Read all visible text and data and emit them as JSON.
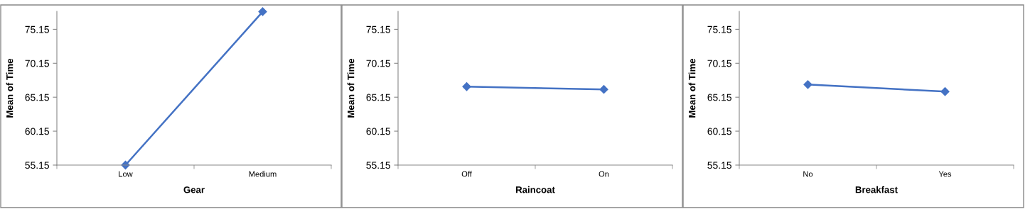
{
  "chart_data": [
    {
      "type": "line",
      "categories": [
        "Low",
        "Medium"
      ],
      "xlabel": "Gear",
      "ylabel": "Mean of Time",
      "series": [
        {
          "color": "#4472c4",
          "values": [
            55.15,
            77.75
          ]
        }
      ],
      "ylim": [
        55.15,
        77.8
      ],
      "yticks": [
        55.15,
        60.15,
        65.15,
        70.15,
        75.15
      ],
      "marker": "diamond",
      "line_style": "solid",
      "grid": false,
      "legend": false
    },
    {
      "type": "line",
      "categories": [
        "Off",
        "On"
      ],
      "xlabel": "Raincoat",
      "ylabel": "Mean of Time",
      "series": [
        {
          "color": "#4472c4",
          "values": [
            66.71,
            66.3
          ]
        }
      ],
      "ylim": [
        55.15,
        77.8
      ],
      "yticks": [
        55.15,
        60.15,
        65.15,
        70.15,
        75.15
      ],
      "marker": "diamond",
      "line_style": "solid",
      "grid": false,
      "legend": false
    },
    {
      "type": "line",
      "categories": [
        "No",
        "Yes"
      ],
      "xlabel": "Breakfast",
      "ylabel": "Mean of Time",
      "series": [
        {
          "color": "#4472c4",
          "values": [
            67.02,
            65.98
          ]
        }
      ],
      "ylim": [
        55.15,
        77.8
      ],
      "yticks": [
        55.15,
        60.15,
        65.15,
        70.15,
        75.15
      ],
      "marker": "diamond",
      "line_style": "solid",
      "grid": false,
      "legend": false
    }
  ]
}
